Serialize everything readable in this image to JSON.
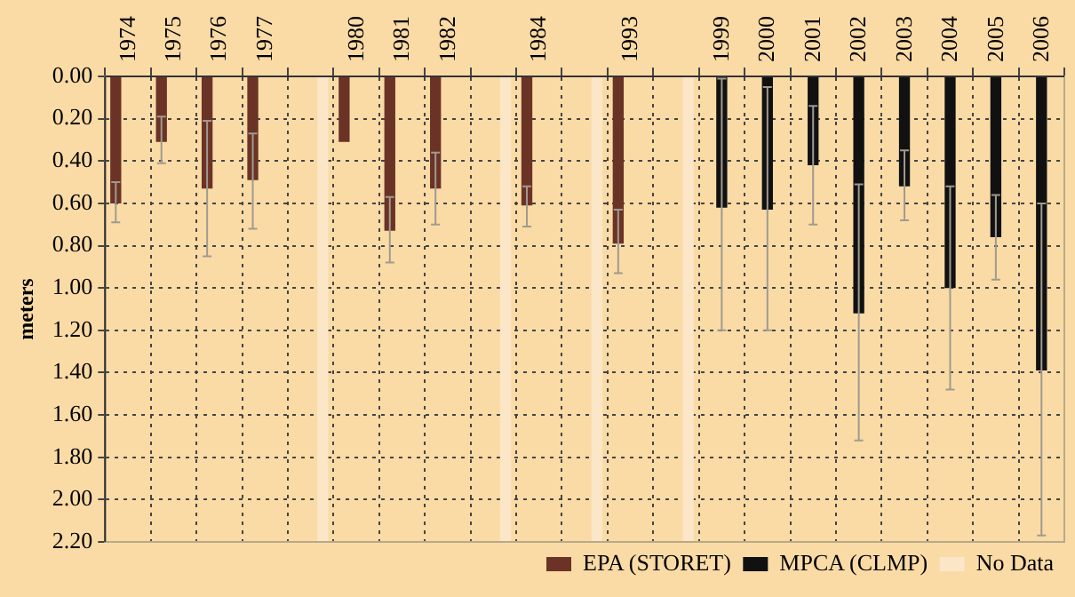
{
  "chart_data": {
    "type": "bar",
    "ylabel": "meters",
    "categories": [
      "1974",
      "1975",
      "1976",
      "1977",
      null,
      "1980",
      "1981",
      "1982",
      null,
      "1984",
      null,
      "1993",
      null,
      "1999",
      "2000",
      "2001",
      "2002",
      "2003",
      "2004",
      "2005",
      "2006"
    ],
    "series": [
      {
        "name": "EPA (STORET)",
        "color": "#6b3326",
        "values": [
          0.6,
          0.31,
          0.53,
          0.49,
          null,
          0.31,
          0.73,
          0.53,
          null,
          0.61,
          null,
          0.79,
          null,
          null,
          null,
          null,
          null,
          null,
          null,
          null,
          null
        ],
        "errors": [
          [
            0.5,
            0.69
          ],
          [
            0.19,
            0.41
          ],
          [
            0.21,
            0.85
          ],
          [
            0.27,
            0.72
          ],
          null,
          null,
          [
            0.57,
            0.88
          ],
          [
            0.36,
            0.7
          ],
          null,
          [
            0.52,
            0.71
          ],
          null,
          [
            0.63,
            0.93
          ],
          null,
          null,
          null,
          null,
          null,
          null,
          null,
          null,
          null
        ]
      },
      {
        "name": "MPCA (CLMP)",
        "color": "#111111",
        "values": [
          null,
          null,
          null,
          null,
          null,
          null,
          null,
          null,
          null,
          null,
          null,
          null,
          null,
          0.62,
          0.63,
          0.42,
          1.12,
          0.52,
          1.0,
          0.76,
          1.39
        ],
        "errors": [
          null,
          null,
          null,
          null,
          null,
          null,
          null,
          null,
          null,
          null,
          null,
          null,
          null,
          [
            0.01,
            1.2
          ],
          [
            0.05,
            1.2
          ],
          [
            0.14,
            0.7
          ],
          [
            0.51,
            1.72
          ],
          [
            0.35,
            0.68
          ],
          [
            0.52,
            1.48
          ],
          [
            0.56,
            0.96
          ],
          [
            0.6,
            2.17
          ]
        ]
      },
      {
        "name": "No Data",
        "color": "#fbe6c8",
        "values": [
          null,
          null,
          null,
          null,
          2.2,
          null,
          null,
          null,
          2.2,
          null,
          2.2,
          null,
          2.2,
          null,
          null,
          null,
          null,
          null,
          null,
          null,
          null
        ]
      }
    ],
    "ylim": [
      2.2,
      0
    ],
    "yticks": [
      {
        "value": 0,
        "label": "0.00"
      },
      {
        "value": 0.2,
        "label": "0.20"
      },
      {
        "value": 0.4,
        "label": "0.40"
      },
      {
        "value": 0.6,
        "label": "0.60"
      },
      {
        "value": 0.8,
        "label": "0.80"
      },
      {
        "value": 1,
        "label": "1.00"
      },
      {
        "value": 1.2,
        "label": "1.20"
      },
      {
        "value": 1.4,
        "label": "1.40"
      },
      {
        "value": 1.6,
        "label": "1.60"
      },
      {
        "value": 1.8,
        "label": "1.80"
      },
      {
        "value": 2,
        "label": "2.00"
      },
      {
        "value": 2.2,
        "label": "2.20"
      }
    ],
    "grid": true,
    "legend": "bottom"
  }
}
